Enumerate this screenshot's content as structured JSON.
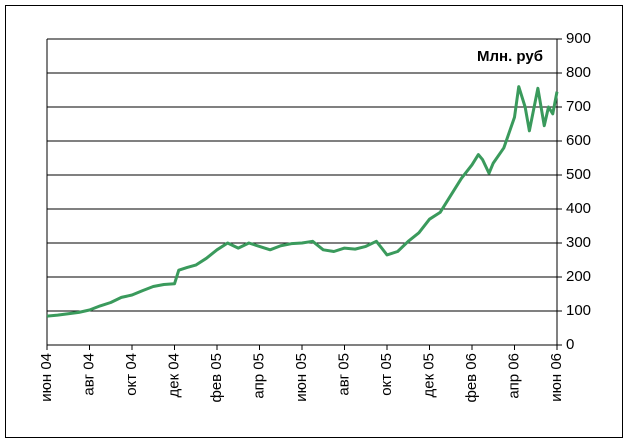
{
  "chart_data": {
    "type": "line",
    "annotation": "Млн. руб",
    "x": [
      0,
      0.5,
      1,
      1.5,
      2,
      2.5,
      3,
      3.5,
      4,
      4.5,
      5,
      5.5,
      6,
      6.2,
      6.6,
      7,
      7.5,
      8,
      8.5,
      9,
      9.5,
      10,
      10.5,
      11,
      11.5,
      12,
      12.5,
      13,
      13.5,
      14,
      14.5,
      15,
      15.5,
      16,
      16.5,
      17,
      17.5,
      18,
      18.5,
      19,
      19.5,
      20,
      20.3,
      20.5,
      20.8,
      21,
      21.5,
      22,
      22.2,
      22.5,
      22.7,
      23.1,
      23.4,
      23.6,
      23.8,
      24
    ],
    "series": [
      {
        "name": "Млн. руб",
        "color": "#3a9a5c",
        "values": [
          85,
          88,
          92,
          96,
          103,
          115,
          125,
          140,
          147,
          160,
          172,
          178,
          180,
          220,
          228,
          235,
          255,
          280,
          300,
          285,
          300,
          290,
          280,
          292,
          298,
          300,
          305,
          280,
          275,
          285,
          282,
          290,
          305,
          265,
          275,
          305,
          330,
          370,
          390,
          440,
          490,
          530,
          560,
          545,
          505,
          535,
          580,
          670,
          760,
          700,
          630,
          755,
          645,
          700,
          680,
          745
        ]
      }
    ],
    "xlim": [
      0,
      24
    ],
    "xticks": [
      {
        "value": 0,
        "label": "июн 04"
      },
      {
        "value": 2,
        "label": "авг 04"
      },
      {
        "value": 4,
        "label": "окт 04"
      },
      {
        "value": 6,
        "label": "дек 04"
      },
      {
        "value": 8,
        "label": "фев 05"
      },
      {
        "value": 10,
        "label": "апр 05"
      },
      {
        "value": 12,
        "label": "июн 05"
      },
      {
        "value": 14,
        "label": "авг 05"
      },
      {
        "value": 16,
        "label": "окт 05"
      },
      {
        "value": 18,
        "label": "дек 05"
      },
      {
        "value": 20,
        "label": "фев 06"
      },
      {
        "value": 22,
        "label": "апр 06"
      },
      {
        "value": 24,
        "label": "июн 06"
      }
    ],
    "ylim": [
      0,
      900
    ],
    "yticks": [
      0,
      100,
      200,
      300,
      400,
      500,
      600,
      700,
      800,
      900
    ],
    "grid": true
  }
}
